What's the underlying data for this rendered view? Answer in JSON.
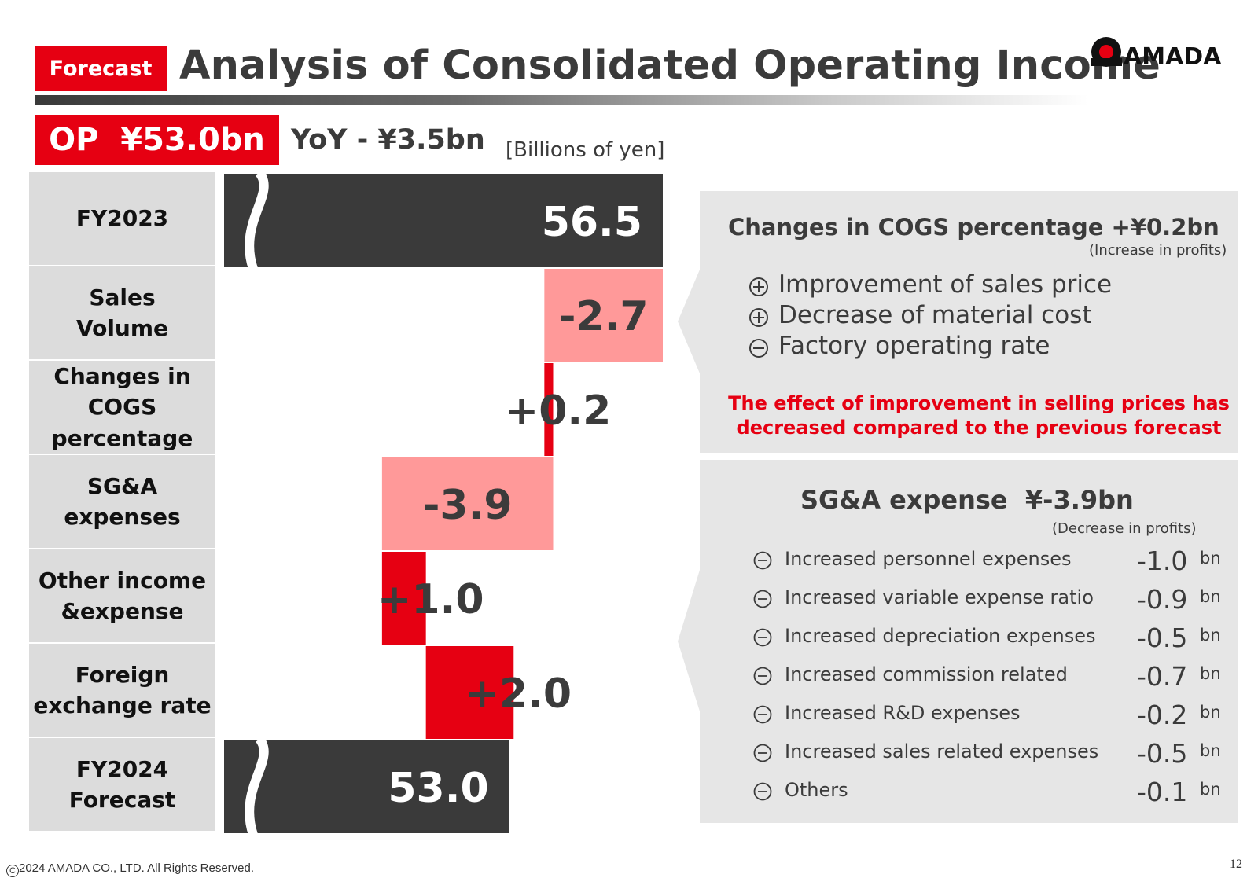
{
  "header": {
    "badge": "Forecast",
    "title": "Analysis of Consolidated Operating Income",
    "logo_text": "AMADA"
  },
  "summary": {
    "op": "OP  ¥53.0bn",
    "yoy": "YoY - ¥3.5bn",
    "unit": "[Billions of yen]"
  },
  "row_labels": [
    "FY2023",
    "Sales\nVolume",
    "Changes in\nCOGS\npercentage",
    "SG&A\nexpenses",
    "Other income\n&expense",
    "Foreign\nexchange rate",
    "FY2024\nForecast"
  ],
  "chart_data": {
    "type": "bar",
    "subtype": "waterfall",
    "orientation": "horizontal",
    "categories": [
      "FY2023",
      "Sales Volume",
      "Changes in COGS percentage",
      "SG&A expenses",
      "Other income &expense",
      "Foreign exchange rate",
      "FY2024 Forecast"
    ],
    "values": [
      56.5,
      -2.7,
      0.2,
      -3.9,
      1.0,
      2.0,
      53.0
    ],
    "kinds": [
      "total",
      "delta",
      "delta",
      "delta",
      "delta",
      "delta",
      "total"
    ],
    "labels": [
      "56.5",
      "-2.7",
      "+0.2",
      "-3.9",
      "+1.0",
      "+2.0",
      "53.0"
    ],
    "colors": {
      "total": "#3a3a3a",
      "decrease": "#ff9999",
      "increase": "#e60012"
    },
    "axis_break": true,
    "xlim": [
      46.5,
      56.5
    ]
  },
  "panel_cogs": {
    "heading": "Changes in COGS percentage +¥0.2bn",
    "sub": "(Increase in profits)",
    "items": [
      {
        "sign": "plus",
        "text": "Improvement of sales price"
      },
      {
        "sign": "plus",
        "text": "Decrease of material cost"
      },
      {
        "sign": "minus",
        "text": "Factory operating rate"
      }
    ],
    "note": "The effect of improvement in selling prices has\ndecreased compared to the previous forecast"
  },
  "panel_sga": {
    "heading": "SG&A expense  ¥-3.9bn",
    "sub": "(Decrease in profits)",
    "items": [
      {
        "text": "Increased personnel expenses",
        "value": "-1.0",
        "unit": "bn"
      },
      {
        "text": "Increased variable expense ratio",
        "value": "-0.9",
        "unit": "bn"
      },
      {
        "text": "Increased depreciation expenses",
        "value": "-0.5",
        "unit": "bn"
      },
      {
        "text": "Increased commission related",
        "value": "-0.7",
        "unit": "bn"
      },
      {
        "text": "Increased R&D expenses",
        "value": "-0.2",
        "unit": "bn"
      },
      {
        "text": "Increased sales related expenses",
        "value": "-0.5",
        "unit": "bn"
      },
      {
        "text": "Others",
        "value": "-0.1",
        "unit": "bn"
      }
    ]
  },
  "footer": {
    "copyright": "2024 AMADA CO., LTD. All Rights Reserved.",
    "page": "12"
  }
}
